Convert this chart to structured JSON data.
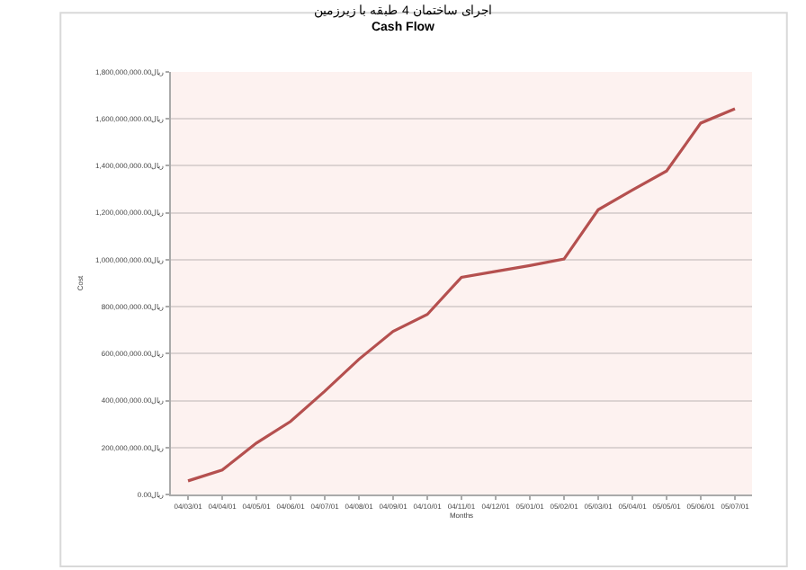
{
  "chart_data": {
    "type": "line",
    "title": "اجرای ساختمان 4 طبقه با زیرزمین",
    "subtitle": "Cash Flow",
    "xlabel": "Months",
    "ylabel": "Cost",
    "categories": [
      "04/03/01",
      "04/04/01",
      "04/05/01",
      "04/06/01",
      "04/07/01",
      "04/08/01",
      "04/09/01",
      "04/10/01",
      "04/11/01",
      "04/12/01",
      "05/01/01",
      "05/02/01",
      "05/03/01",
      "05/04/01",
      "05/05/01",
      "05/06/01",
      "05/07/01"
    ],
    "series": [
      {
        "color": "#b5504f",
        "values": [
          58000000,
          104000000,
          219000000,
          311000000,
          440000000,
          576000000,
          695000000,
          767000000,
          925000000,
          950000000,
          975000000,
          1003000000,
          1213000000,
          1297000000,
          1378000000,
          1582000000,
          1643000000
        ]
      }
    ],
    "ylim": [
      0,
      1800000000
    ],
    "yticks": [
      {
        "value": 0,
        "label": "0.00ریال"
      },
      {
        "value": 200000000,
        "label": "200,000,000.00ریال"
      },
      {
        "value": 400000000,
        "label": "400,000,000.00ریال"
      },
      {
        "value": 600000000,
        "label": "600,000,000.00ریال"
      },
      {
        "value": 800000000,
        "label": "800,000,000.00ریال"
      },
      {
        "value": 1000000000,
        "label": "1,000,000,000.00ریال"
      },
      {
        "value": 1200000000,
        "label": "1,200,000,000.00ریال"
      },
      {
        "value": 1400000000,
        "label": "1,400,000,000.00ریال"
      },
      {
        "value": 1600000000,
        "label": "1,600,000,000.00ریال"
      },
      {
        "value": 1800000000,
        "label": "1,800,000,000.00ریال"
      }
    ],
    "grid": "y",
    "marker": "none",
    "line_style": "solid"
  }
}
